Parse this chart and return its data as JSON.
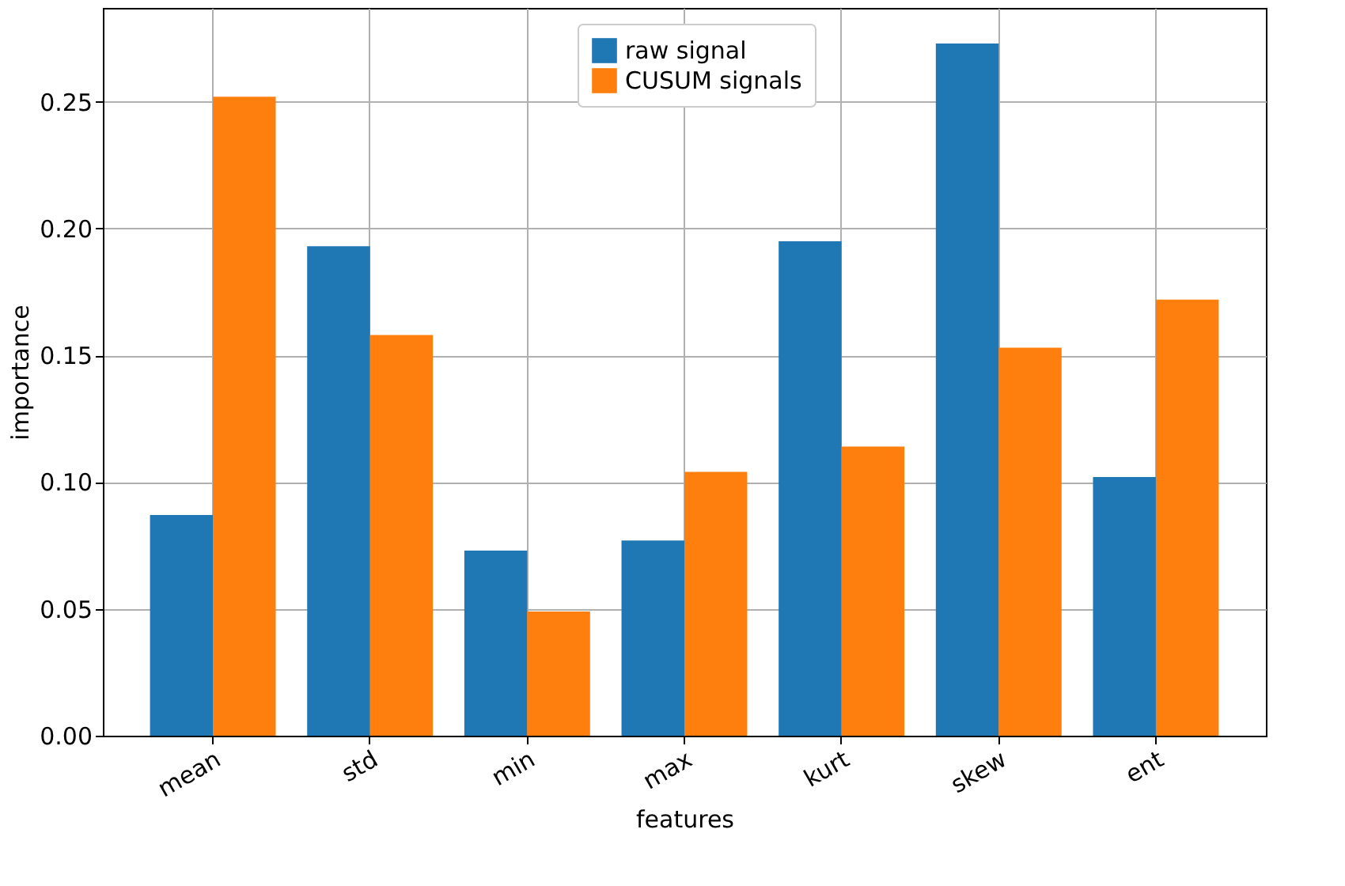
{
  "chart_data": {
    "type": "bar",
    "xlabel": "features",
    "ylabel": "importance",
    "categories": [
      "mean",
      "std",
      "min",
      "max",
      "kurt",
      "skew",
      "ent"
    ],
    "series": [
      {
        "name": "raw signal",
        "color": "#1f77b4",
        "values": [
          0.087,
          0.193,
          0.073,
          0.077,
          0.195,
          0.273,
          0.102
        ]
      },
      {
        "name": "CUSUM signals",
        "color": "#ff7f0e",
        "values": [
          0.252,
          0.158,
          0.049,
          0.104,
          0.114,
          0.153,
          0.172
        ]
      }
    ],
    "ylim": [
      0,
      0.287
    ],
    "yticks": [
      {
        "value": 0,
        "label": "0.00"
      },
      {
        "value": 0.05,
        "label": "0.05"
      },
      {
        "value": 0.1,
        "label": "0.10"
      },
      {
        "value": 0.15,
        "label": "0.15"
      },
      {
        "value": 0.2,
        "label": "0.20"
      },
      {
        "value": 0.25,
        "label": "0.25"
      }
    ],
    "grid": true,
    "legend": "top"
  }
}
